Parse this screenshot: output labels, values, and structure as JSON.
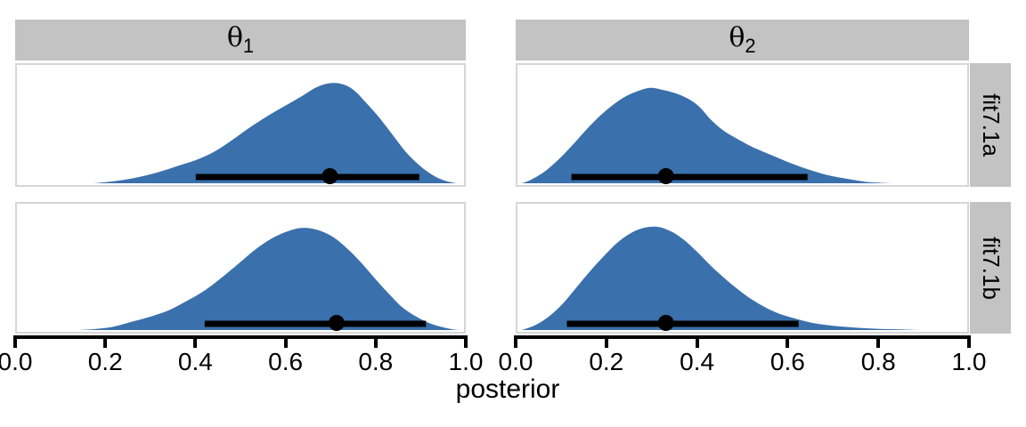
{
  "colors": {
    "density_fill": "#3A70AC",
    "strip_background": "#C3C3C3",
    "panel_border": "#D6D6D6",
    "axis": "#000000",
    "background": "#FFFFFF"
  },
  "facets": {
    "columns": [
      {
        "base": "θ",
        "sub": "1"
      },
      {
        "base": "θ",
        "sub": "2"
      }
    ],
    "rows": [
      "fit7.1a",
      "fit7.1b"
    ]
  },
  "axis": {
    "label": "posterior",
    "tick_labels": [
      "0.0",
      "0.2",
      "0.4",
      "0.6",
      "0.8",
      "1.0"
    ]
  },
  "chart_data": {
    "type": "area",
    "subtype": "faceted-density",
    "title": "",
    "xlabel": "posterior",
    "ylabel": "",
    "xlim": [
      0,
      1
    ],
    "x_ticks": [
      0.0,
      0.2,
      0.4,
      0.6,
      0.8,
      1.0
    ],
    "grid": false,
    "legend": "none",
    "facet_columns": [
      "theta_1",
      "theta_2"
    ],
    "facet_rows": [
      "fit7.1a",
      "fit7.1b"
    ],
    "panels": [
      {
        "row": "fit7.1a",
        "col": "theta_1",
        "point": 0.7,
        "interval": [
          0.4,
          0.9
        ],
        "density": [
          [
            0.17,
            0
          ],
          [
            0.2,
            0.01
          ],
          [
            0.24,
            0.03
          ],
          [
            0.28,
            0.06
          ],
          [
            0.32,
            0.1
          ],
          [
            0.36,
            0.15
          ],
          [
            0.4,
            0.2
          ],
          [
            0.44,
            0.27
          ],
          [
            0.48,
            0.37
          ],
          [
            0.52,
            0.48
          ],
          [
            0.56,
            0.58
          ],
          [
            0.6,
            0.67
          ],
          [
            0.64,
            0.76
          ],
          [
            0.67,
            0.83
          ],
          [
            0.7,
            0.865
          ],
          [
            0.73,
            0.855
          ],
          [
            0.755,
            0.8
          ],
          [
            0.78,
            0.7
          ],
          [
            0.81,
            0.57
          ],
          [
            0.84,
            0.42
          ],
          [
            0.87,
            0.27
          ],
          [
            0.9,
            0.155
          ],
          [
            0.93,
            0.07
          ],
          [
            0.955,
            0.025
          ],
          [
            0.975,
            0.005
          ],
          [
            0.985,
            0
          ]
        ]
      },
      {
        "row": "fit7.1a",
        "col": "theta_2",
        "point": 0.33,
        "interval": [
          0.12,
          0.645
        ],
        "density": [
          [
            0.01,
            0
          ],
          [
            0.03,
            0.03
          ],
          [
            0.06,
            0.1
          ],
          [
            0.09,
            0.2
          ],
          [
            0.12,
            0.32
          ],
          [
            0.15,
            0.45
          ],
          [
            0.18,
            0.57
          ],
          [
            0.21,
            0.67
          ],
          [
            0.24,
            0.75
          ],
          [
            0.27,
            0.8
          ],
          [
            0.295,
            0.825
          ],
          [
            0.32,
            0.81
          ],
          [
            0.35,
            0.78
          ],
          [
            0.38,
            0.73
          ],
          [
            0.405,
            0.66
          ],
          [
            0.43,
            0.55
          ],
          [
            0.46,
            0.45
          ],
          [
            0.5,
            0.36
          ],
          [
            0.53,
            0.3
          ],
          [
            0.57,
            0.235
          ],
          [
            0.61,
            0.17
          ],
          [
            0.65,
            0.115
          ],
          [
            0.69,
            0.07
          ],
          [
            0.73,
            0.04
          ],
          [
            0.77,
            0.015
          ],
          [
            0.8,
            0.005
          ],
          [
            0.83,
            0
          ]
        ]
      },
      {
        "row": "fit7.1b",
        "col": "theta_1",
        "point": 0.715,
        "interval": [
          0.42,
          0.915
        ],
        "density": [
          [
            0.14,
            0
          ],
          [
            0.18,
            0.01
          ],
          [
            0.22,
            0.03
          ],
          [
            0.26,
            0.07
          ],
          [
            0.3,
            0.11
          ],
          [
            0.34,
            0.16
          ],
          [
            0.38,
            0.235
          ],
          [
            0.42,
            0.32
          ],
          [
            0.46,
            0.43
          ],
          [
            0.5,
            0.55
          ],
          [
            0.54,
            0.67
          ],
          [
            0.58,
            0.76
          ],
          [
            0.62,
            0.815
          ],
          [
            0.65,
            0.825
          ],
          [
            0.68,
            0.8
          ],
          [
            0.71,
            0.745
          ],
          [
            0.74,
            0.655
          ],
          [
            0.77,
            0.545
          ],
          [
            0.8,
            0.42
          ],
          [
            0.83,
            0.3
          ],
          [
            0.86,
            0.19
          ],
          [
            0.89,
            0.115
          ],
          [
            0.92,
            0.06
          ],
          [
            0.95,
            0.025
          ],
          [
            0.975,
            0.005
          ],
          [
            0.99,
            0
          ]
        ]
      },
      {
        "row": "fit7.1b",
        "col": "theta_2",
        "point": 0.33,
        "interval": [
          0.11,
          0.625
        ],
        "density": [
          [
            0.01,
            0
          ],
          [
            0.04,
            0.04
          ],
          [
            0.07,
            0.11
          ],
          [
            0.1,
            0.21
          ],
          [
            0.13,
            0.34
          ],
          [
            0.16,
            0.47
          ],
          [
            0.19,
            0.59
          ],
          [
            0.22,
            0.7
          ],
          [
            0.25,
            0.78
          ],
          [
            0.28,
            0.825
          ],
          [
            0.31,
            0.835
          ],
          [
            0.34,
            0.8
          ],
          [
            0.37,
            0.73
          ],
          [
            0.4,
            0.63
          ],
          [
            0.43,
            0.52
          ],
          [
            0.46,
            0.42
          ],
          [
            0.49,
            0.33
          ],
          [
            0.52,
            0.25
          ],
          [
            0.55,
            0.185
          ],
          [
            0.58,
            0.135
          ],
          [
            0.62,
            0.09
          ],
          [
            0.66,
            0.055
          ],
          [
            0.7,
            0.035
          ],
          [
            0.75,
            0.02
          ],
          [
            0.8,
            0.01
          ],
          [
            0.85,
            0.005
          ],
          [
            0.9,
            0
          ]
        ]
      }
    ]
  }
}
